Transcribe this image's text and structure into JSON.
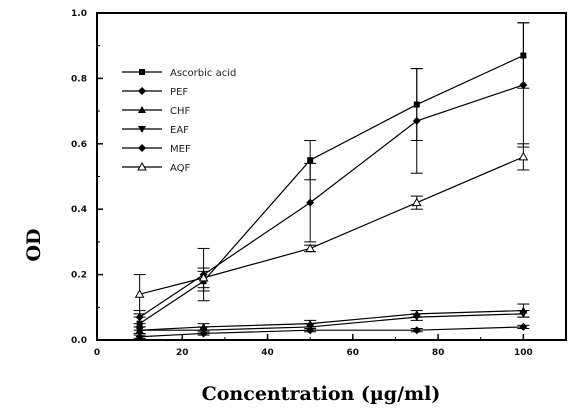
{
  "chart_data": {
    "type": "line",
    "xlabel": "Concentration (µg/ml)",
    "ylabel": "OD",
    "xlim": [
      0,
      110
    ],
    "ylim": [
      0,
      1.0
    ],
    "xticks": [
      0,
      20,
      40,
      60,
      80,
      100
    ],
    "yticks": [
      0.0,
      0.2,
      0.4,
      0.6,
      0.8,
      1.0
    ],
    "xtick_labels": [
      "0",
      "20",
      "40",
      "60",
      "80",
      "100"
    ],
    "ytick_labels": [
      "0.0",
      "0.2",
      "0.4",
      "0.6",
      "0.8",
      "1.0"
    ],
    "legend_position": "top-left",
    "grid": false,
    "series": [
      {
        "name": "Ascorbic acid",
        "marker": "square",
        "x": [
          10,
          25,
          50,
          75,
          100
        ],
        "y": [
          0.05,
          0.18,
          0.55,
          0.72,
          0.87
        ],
        "err": [
          0.02,
          0.03,
          0.06,
          0.11,
          0.1
        ]
      },
      {
        "name": "PEF",
        "marker": "diamond",
        "x": [
          10,
          25,
          50,
          75,
          100
        ],
        "y": [
          0.01,
          0.02,
          0.03,
          0.03,
          0.04
        ],
        "err": [
          0.005,
          0.005,
          0.005,
          0.005,
          0.005
        ]
      },
      {
        "name": "CHF",
        "marker": "triangle-up",
        "x": [
          10,
          25,
          50,
          75,
          100
        ],
        "y": [
          0.03,
          0.04,
          0.05,
          0.08,
          0.09
        ],
        "err": [
          0.01,
          0.01,
          0.01,
          0.01,
          0.02
        ]
      },
      {
        "name": "EAF",
        "marker": "triangle-down",
        "x": [
          10,
          25,
          50,
          75,
          100
        ],
        "y": [
          0.03,
          0.03,
          0.04,
          0.07,
          0.08
        ],
        "err": [
          0.01,
          0.01,
          0.01,
          0.01,
          0.01
        ]
      },
      {
        "name": "MEF",
        "marker": "diamond",
        "x": [
          10,
          25,
          50,
          75,
          100
        ],
        "y": [
          0.07,
          0.2,
          0.42,
          0.67,
          0.78
        ],
        "err": [
          0.02,
          0.08,
          0.12,
          0.16,
          0.19
        ]
      },
      {
        "name": "AQF",
        "marker": "triangle-up-open",
        "x": [
          10,
          25,
          50,
          75,
          100
        ],
        "y": [
          0.14,
          0.19,
          0.28,
          0.42,
          0.56
        ],
        "err": [
          0.06,
          0.03,
          0.01,
          0.02,
          0.04
        ]
      }
    ]
  }
}
